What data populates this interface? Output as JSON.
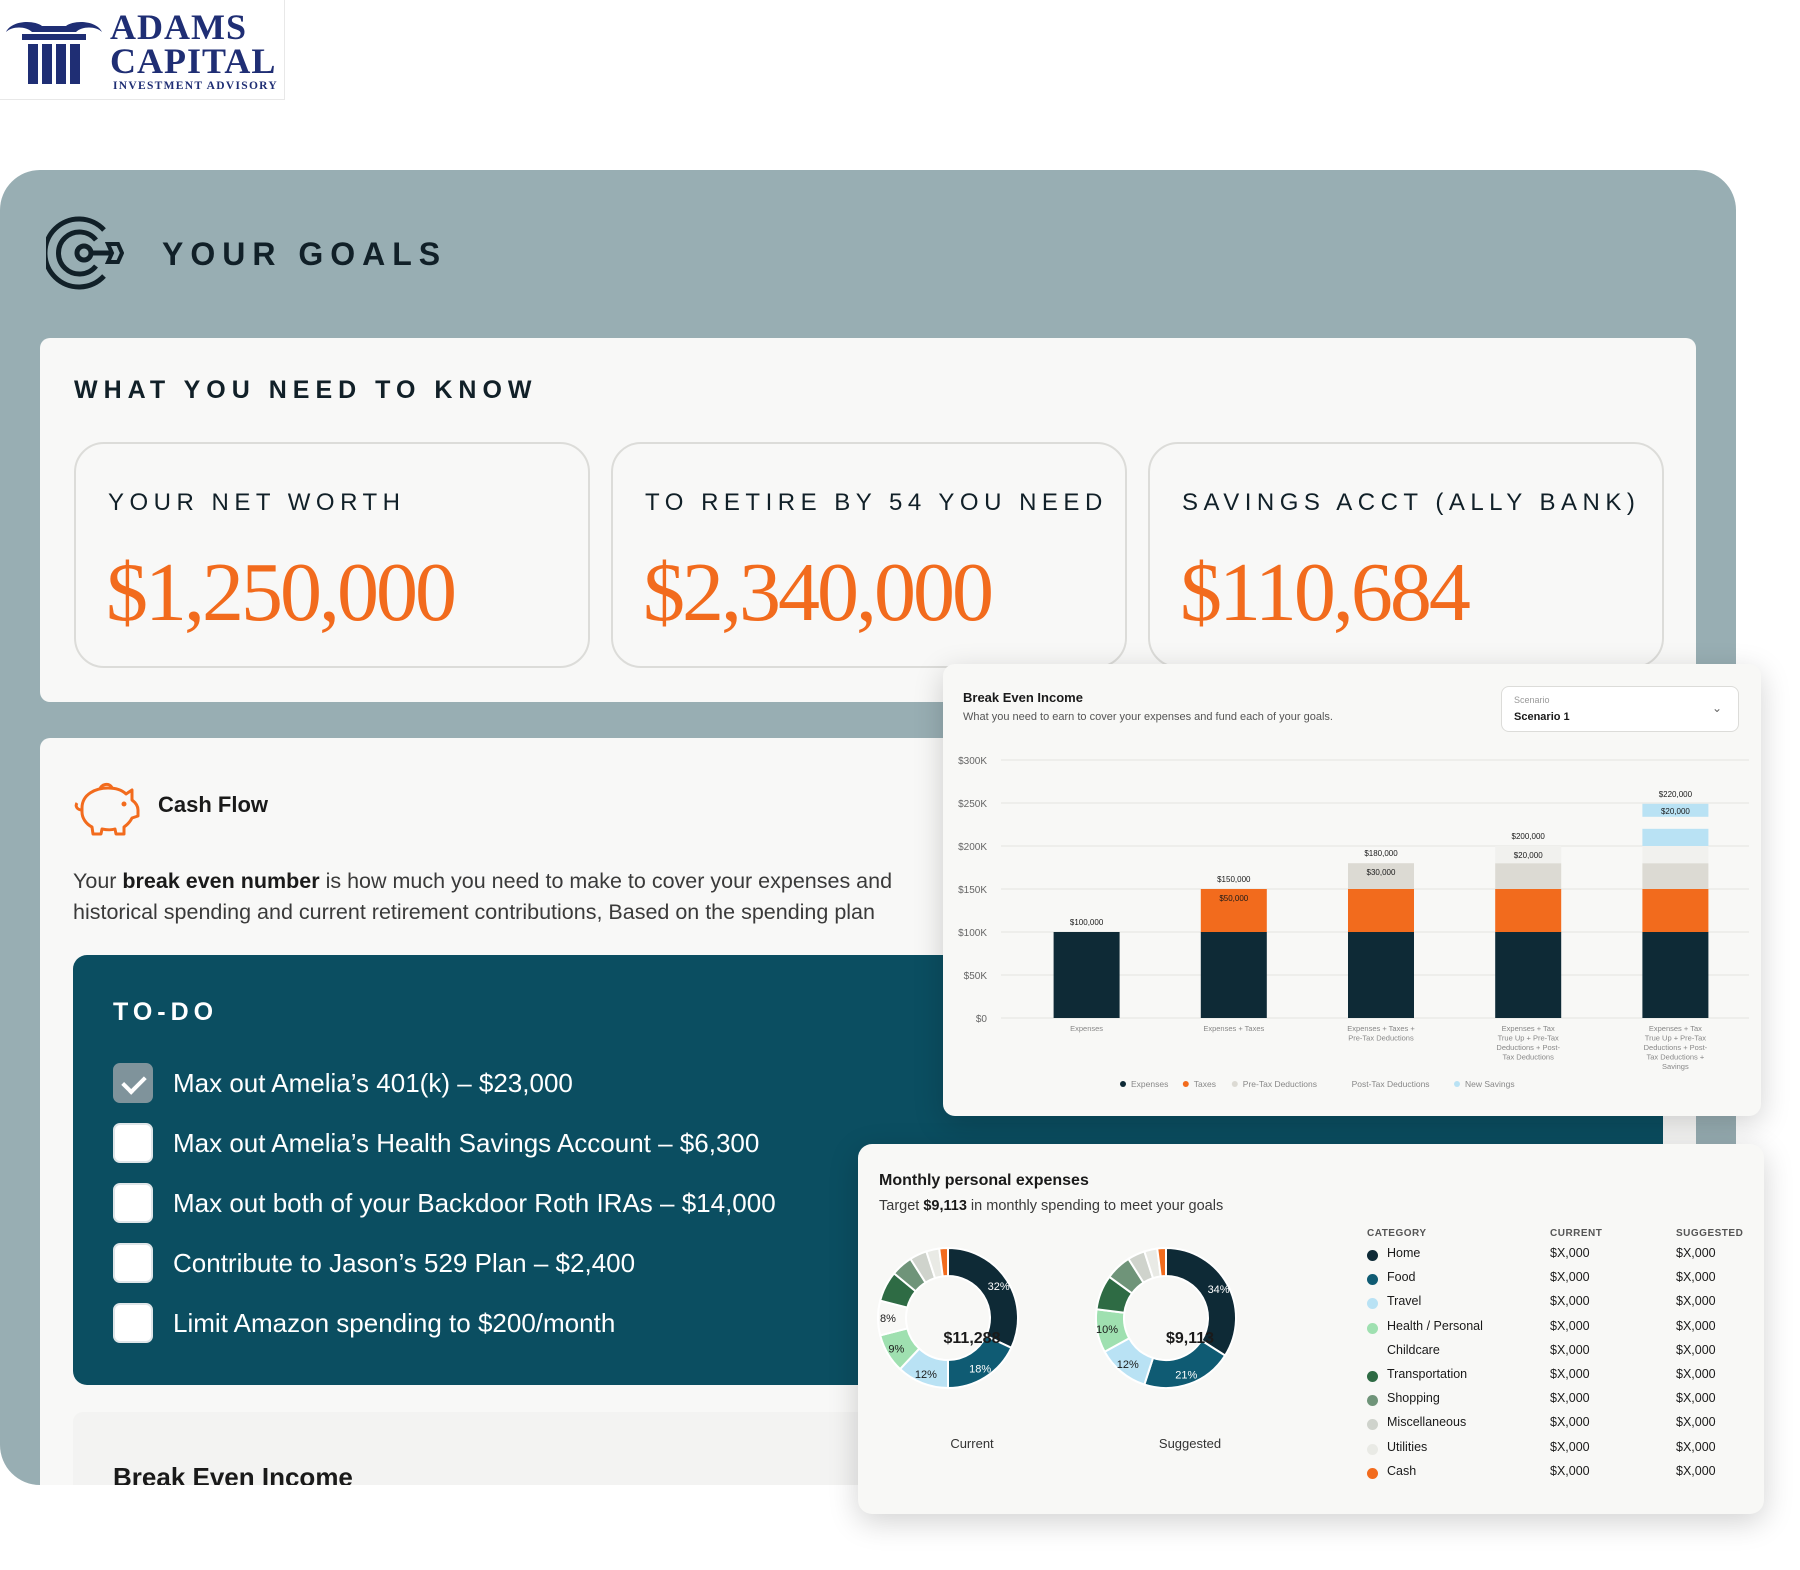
{
  "logo": {
    "line1": "ADAMS",
    "line2": "CAPITAL",
    "line3": "INVESTMENT ADVISORY"
  },
  "goals": {
    "title": "YOUR GOALS"
  },
  "know": {
    "title": "WHAT YOU NEED TO KNOW",
    "stats": [
      {
        "label": "YOUR NET WORTH",
        "value": "$1,250,000"
      },
      {
        "label": "TO RETIRE BY 54 YOU NEED",
        "value": "$2,340,000"
      },
      {
        "label": "SAVINGS ACCT (ALLY BANK)",
        "value": "$110,684"
      }
    ]
  },
  "cashflow": {
    "title": "Cash Flow",
    "desc_pre": "Your ",
    "desc_bold": "break even number",
    "desc_post": " is how much you need to make to cover your expenses and",
    "desc_line2": "historical spending and current retirement contributions,  Based on the spending plan"
  },
  "todo": {
    "title": "TO-DO",
    "items": [
      {
        "text": "Max out Amelia’s 401(k) – $23,000",
        "checked": true
      },
      {
        "text": "Max out Amelia’s Health Savings Account – $6,300",
        "checked": false
      },
      {
        "text": "Max out both of your Backdoor Roth IRAs – $14,000",
        "checked": false
      },
      {
        "text": "Contribute to Jason’s 529 Plan – $2,400",
        "checked": false
      },
      {
        "text": "Limit Amazon spending to $200/month",
        "checked": false
      }
    ]
  },
  "break_even_section": {
    "title": "Break Even Income"
  },
  "break_even_chart": {
    "title": "Break Even Income",
    "subtitle": "What you need to earn to cover your expenses and fund each of your goals.",
    "scenario_label": "Scenario",
    "scenario_value": "Scenario 1"
  },
  "expenses": {
    "title": "Monthly personal expenses",
    "subtitle_pre": "Target ",
    "subtitle_bold": "$9,113",
    "subtitle_post": " in monthly spending to meet your goals",
    "headers": {
      "category": "CATEGORY",
      "current": "CURRENT",
      "suggested": "SUGGESTED"
    },
    "rows": [
      {
        "category": "Home",
        "current": "$X,000",
        "suggested": "$X,000",
        "color": "#0e2a36"
      },
      {
        "category": "Food",
        "current": "$X,000",
        "suggested": "$X,000",
        "color": "#0f5b73"
      },
      {
        "category": "Travel",
        "current": "$X,000",
        "suggested": "$X,000",
        "color": "#b9e2f4"
      },
      {
        "category": "Health / Personal",
        "current": "$X,000",
        "suggested": "$X,000",
        "color": "#9fe0b0"
      },
      {
        "category": "Childcare",
        "current": "$X,000",
        "suggested": "$X,000",
        "color": "#f8f8f6"
      },
      {
        "category": "Transportation",
        "current": "$X,000",
        "suggested": "$X,000",
        "color": "#2e6b44"
      },
      {
        "category": "Shopping",
        "current": "$X,000",
        "suggested": "$X,000",
        "color": "#6f9479"
      },
      {
        "category": "Miscellaneous",
        "current": "$X,000",
        "suggested": "$X,000",
        "color": "#cfd3cc"
      },
      {
        "category": "Utilities",
        "current": "$X,000",
        "suggested": "$X,000",
        "color": "#e9eae5"
      },
      {
        "category": "Cash",
        "current": "$X,000",
        "suggested": "$X,000",
        "color": "#f26b1d"
      }
    ]
  },
  "chart_data": [
    {
      "type": "bar",
      "stacked": true,
      "title": "Break Even Income",
      "subtitle": "What you need to earn to cover your expenses and fund each of your goals.",
      "categories": [
        "Expenses",
        "Expenses + Taxes",
        "Expenses + Taxes + Pre-Tax Deductions",
        "Expenses + Tax True Up + Pre-Tax Deductions + Post-Tax Deductions",
        "Expenses + Tax True Up + Pre-Tax Deductions + Post-Tax Deductions + Savings"
      ],
      "category_lines": [
        [
          "Expenses"
        ],
        [
          "Expenses + Taxes"
        ],
        [
          "Expenses + Taxes +",
          "Pre-Tax Deductions"
        ],
        [
          "Expenses + Tax",
          "True Up + Pre-Tax",
          "Deductions + Post-",
          "Tax Deductions"
        ],
        [
          "Expenses + Tax",
          "True Up + Pre-Tax",
          "Deductions + Post-",
          "Tax Deductions +",
          "Savings"
        ]
      ],
      "series": [
        {
          "name": "Expenses",
          "color": "#0e2a36",
          "values": [
            100000,
            100000,
            100000,
            100000,
            100000
          ]
        },
        {
          "name": "Taxes",
          "color": "#f26b1d",
          "values": [
            0,
            50000,
            50000,
            50000,
            50000
          ]
        },
        {
          "name": "Pre-Tax Deductions",
          "color": "#dcdad3",
          "values": [
            0,
            0,
            30000,
            30000,
            30000
          ]
        },
        {
          "name": "Post-Tax Deductions",
          "color": "#f1f1ee",
          "values": [
            0,
            0,
            0,
            20000,
            20000
          ]
        },
        {
          "name": "New Savings",
          "color": "#b9e2f4",
          "values": [
            0,
            0,
            0,
            0,
            20000
          ]
        }
      ],
      "total_labels": [
        "$100,000",
        "$150,000",
        "$180,000",
        "$200,000",
        "$220,000"
      ],
      "segment_labels": [
        {
          "bar": 1,
          "series": 1,
          "text": "$50,000"
        },
        {
          "bar": 2,
          "series": 2,
          "text": "$30,000"
        },
        {
          "bar": 3,
          "series": 3,
          "text": "$20,000"
        },
        {
          "bar": 4,
          "series": 4,
          "text": "$20,000"
        }
      ],
      "yticks": [
        "$0",
        "$50K",
        "$100K",
        "$150K",
        "$200K",
        "$250K",
        "$300K"
      ],
      "ylim": [
        0,
        300000
      ],
      "grid": true,
      "legend": "bottom"
    },
    {
      "type": "pie",
      "donut": true,
      "name": "Current",
      "center_label": "$11,288",
      "caption": "Current",
      "slices": [
        {
          "category": "Home",
          "value": 32,
          "label": "32%",
          "color": "#0e2a36"
        },
        {
          "category": "Food",
          "value": 18,
          "label": "18%",
          "color": "#0f5b73"
        },
        {
          "category": "Travel",
          "value": 12,
          "label": "12%",
          "color": "#b9e2f4"
        },
        {
          "category": "Health / Personal",
          "value": 9,
          "label": "9%",
          "color": "#9fe0b0"
        },
        {
          "category": "Childcare",
          "value": 8,
          "label": "8%",
          "color": "#f8f8f6"
        },
        {
          "category": "Transportation",
          "value": 7,
          "label": "",
          "color": "#2e6b44"
        },
        {
          "category": "Shopping",
          "value": 5,
          "label": "",
          "color": "#6f9479"
        },
        {
          "category": "Miscellaneous",
          "value": 4,
          "label": "",
          "color": "#cfd3cc"
        },
        {
          "category": "Utilities",
          "value": 3,
          "label": "",
          "color": "#e9eae5"
        },
        {
          "category": "Cash",
          "value": 2,
          "label": "",
          "color": "#f26b1d"
        }
      ]
    },
    {
      "type": "pie",
      "donut": true,
      "name": "Suggested",
      "center_label": "$9,113",
      "caption": "Suggested",
      "slices": [
        {
          "category": "Home",
          "value": 34,
          "label": "34%",
          "color": "#0e2a36"
        },
        {
          "category": "Food",
          "value": 21,
          "label": "21%",
          "color": "#0f5b73"
        },
        {
          "category": "Travel",
          "value": 12,
          "label": "12%",
          "color": "#b9e2f4"
        },
        {
          "category": "Health / Personal",
          "value": 10,
          "label": "10%",
          "color": "#9fe0b0"
        },
        {
          "category": "Transportation",
          "value": 8,
          "label": "",
          "color": "#2e6b44"
        },
        {
          "category": "Shopping",
          "value": 6,
          "label": "",
          "color": "#6f9479"
        },
        {
          "category": "Miscellaneous",
          "value": 4,
          "label": "",
          "color": "#cfd3cc"
        },
        {
          "category": "Utilities",
          "value": 3,
          "label": "",
          "color": "#e9eae5"
        },
        {
          "category": "Cash",
          "value": 2,
          "label": "",
          "color": "#f26b1d"
        }
      ]
    }
  ]
}
